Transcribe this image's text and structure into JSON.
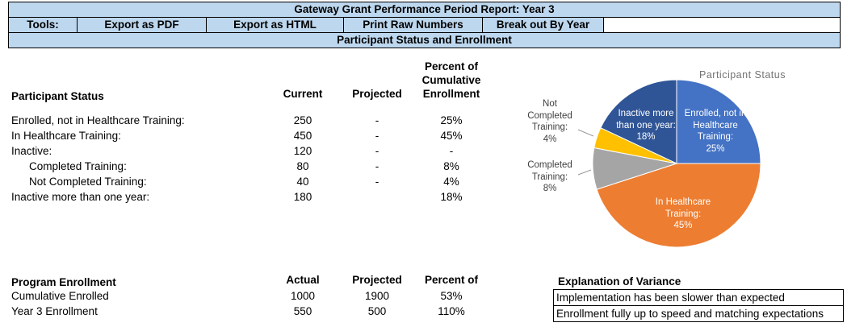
{
  "header": {
    "title": "Gateway Grant Performance Period Report: Year 3",
    "tools_label": "Tools:",
    "tools": [
      "Export as PDF",
      "Export as HTML",
      "Print Raw Numbers",
      "Break out By Year"
    ],
    "section_title": "Participant Status and Enrollment"
  },
  "participant_status": {
    "title": "Participant Status",
    "columns": [
      "Current",
      "Projected",
      "Percent of Cumulative Enrollment"
    ],
    "rows": [
      {
        "label": "Enrolled, not in Healthcare Training:",
        "current": "250",
        "projected": "-",
        "percent": "25%"
      },
      {
        "label": "In Healthcare Training:",
        "current": "450",
        "projected": "-",
        "percent": "45%"
      },
      {
        "label": "Inactive:",
        "current": "120",
        "projected": "-",
        "percent": "-"
      },
      {
        "label": "Completed Training:",
        "current": "80",
        "projected": "-",
        "percent": "8%"
      },
      {
        "label": "Not Completed Training:",
        "current": "40",
        "projected": "-",
        "percent": "4%"
      },
      {
        "label": "Inactive more than one year:",
        "current": "180",
        "projected": "",
        "percent": "18%"
      }
    ]
  },
  "program_enrollment": {
    "title": "Program Enrollment",
    "columns": [
      "Actual",
      "Projected",
      "Percent of"
    ],
    "rows": [
      {
        "label": "Cumulative Enrolled",
        "actual": "1000",
        "projected": "1900",
        "percent": "53%"
      },
      {
        "label": "Year 3 Enrollment",
        "actual": "550",
        "projected": "500",
        "percent": "110%"
      }
    ]
  },
  "variance": {
    "title": "Explanation of Variance",
    "notes": [
      "Implementation has been slower than expected",
      "Enrollment fully up to speed and matching expectations"
    ]
  },
  "chart_data": {
    "type": "pie",
    "title": "Participant  Status",
    "categories": [
      "Enrolled, not in Healthcare Training",
      "In Healthcare Training",
      "Completed Training",
      "Not Completed Training",
      "Inactive more than one year"
    ],
    "values": [
      25,
      45,
      8,
      4,
      18
    ],
    "colors": [
      "#4472C4",
      "#ED7D31",
      "#A5A5A5",
      "#FFC000",
      "#2F5597"
    ],
    "slice_labels": [
      "Enrolled, not in\nHealthcare\nTraining:\n25%",
      "In Healthcare\nTraining:\n45%",
      "Completed\nTraining:\n8%",
      "Not\nCompleted\nTraining:\n4%",
      "Inactive more\nthan one year:\n18%"
    ],
    "legend_position": "none",
    "start_angle_deg": 0,
    "direction": "clockwise"
  },
  "colors": {
    "header_fill": "#BDD7EE",
    "border": "#000000",
    "chart_title_text": "#737373"
  }
}
